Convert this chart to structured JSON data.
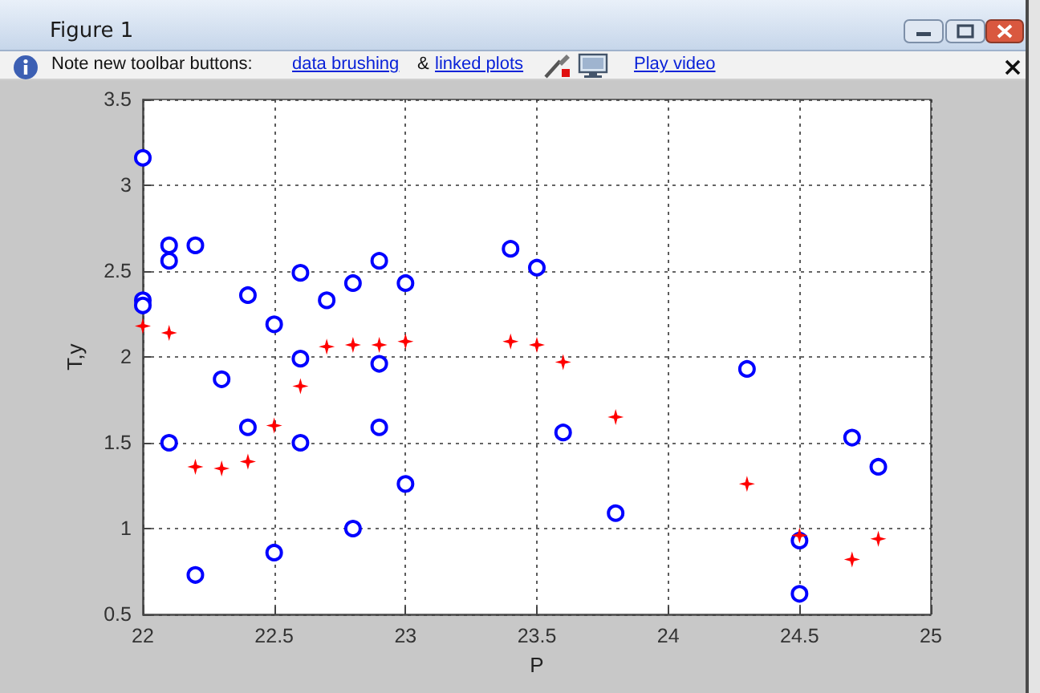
{
  "chart_data": {
    "type": "scatter",
    "xlabel": "P",
    "ylabel": "T,y",
    "xlim": [
      22,
      25
    ],
    "xticks": [
      22,
      22.5,
      23,
      23.5,
      24,
      24.5,
      25
    ],
    "ylim": [
      0.5,
      3.5
    ],
    "yticks": [
      0.5,
      1,
      1.5,
      2,
      2.5,
      3,
      3.5
    ],
    "grid": true,
    "series": [
      {
        "color": "#0000ff",
        "marker": "circle",
        "x": [
          22,
          22,
          22,
          22.1,
          22.1,
          22.1,
          22.2,
          22.2,
          22.3,
          22.4,
          22.4,
          22.5,
          22.5,
          22.6,
          22.6,
          22.6,
          22.7,
          22.8,
          22.8,
          22.9,
          22.9,
          22.9,
          23,
          23,
          23.4,
          23.5,
          23.6,
          23.8,
          24.3,
          24.5,
          24.5,
          24.7,
          24.8
        ],
        "values": [
          3.16,
          2.33,
          2.3,
          2.65,
          2.56,
          1.5,
          2.65,
          0.73,
          1.87,
          2.36,
          1.59,
          2.19,
          0.86,
          2.49,
          1.99,
          1.5,
          2.33,
          2.43,
          1.0,
          2.56,
          1.96,
          1.59,
          2.43,
          1.26,
          2.63,
          2.52,
          1.56,
          1.09,
          1.93,
          0.93,
          0.62,
          1.53,
          1.36
        ]
      },
      {
        "color": "#ff0000",
        "marker": "star",
        "x": [
          22,
          22.1,
          22.2,
          22.3,
          22.4,
          22.5,
          22.6,
          22.7,
          22.8,
          22.9,
          23,
          23.4,
          23.5,
          23.6,
          23.8,
          24.3,
          24.5,
          24.7,
          24.8
        ],
        "values": [
          2.18,
          2.14,
          1.36,
          1.35,
          1.39,
          1.6,
          1.83,
          2.06,
          2.07,
          2.07,
          2.09,
          2.09,
          2.07,
          1.97,
          1.65,
          1.26,
          0.96,
          0.82,
          0.94
        ]
      }
    ],
    "annotations": [
      "Figure 1",
      "Note new toolbar buttons:",
      "data brushing",
      "&",
      "linked plots",
      "Play video"
    ]
  }
}
